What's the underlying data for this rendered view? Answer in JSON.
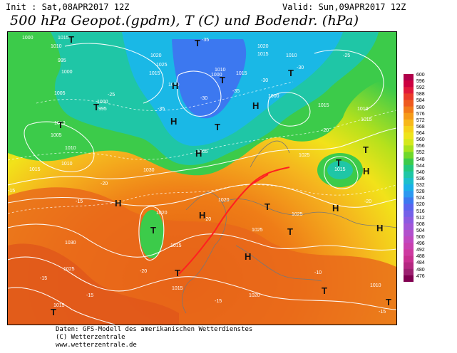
{
  "header": {
    "init": "Init : Sat,08APR2017 12Z",
    "valid": "Valid: Sun,09APR2017 12Z",
    "title": "500 hPa Geopot.(gpdm), T (C) und Bodendr. (hPa)"
  },
  "footer": {
    "line1": "Daten: GFS-Modell des amerikanischen Wetterdienstes",
    "line2": "(C) Wetterzentrale",
    "line3": "www.wetterzentrale.de"
  },
  "colors": {
    "deep_orange": "#e05a10",
    "orange": "#f08a1a",
    "amber": "#f5b31e",
    "yellow": "#f2e21a",
    "lime": "#b6e11c",
    "green": "#3ccb4a",
    "teal": "#1fc6a6",
    "cyan": "#1ab8e6",
    "blue": "#3c78f0",
    "trough_line": "#ff2020"
  },
  "scale_values": [
    "600",
    "596",
    "592",
    "588",
    "584",
    "580",
    "576",
    "572",
    "568",
    "564",
    "560",
    "556",
    "552",
    "548",
    "544",
    "540",
    "536",
    "532",
    "528",
    "524",
    "520",
    "516",
    "512",
    "508",
    "504",
    "500",
    "496",
    "492",
    "488",
    "484",
    "480",
    "476"
  ],
  "scale_colors": [
    "#b0004a",
    "#cc0040",
    "#e0183a",
    "#ea3a2a",
    "#ee5a1e",
    "#f27a18",
    "#f59a18",
    "#f7b81a",
    "#f5d21a",
    "#eee41c",
    "#d4e81c",
    "#a8e21c",
    "#6fd82a",
    "#3ccb4a",
    "#22c87c",
    "#1fc6a6",
    "#1bbfcc",
    "#1ab0e8",
    "#2c98f0",
    "#3c78f0",
    "#5a64ee",
    "#7460e8",
    "#8c5ae0",
    "#a056d8",
    "#b250cc",
    "#c048c0",
    "#c840b0",
    "#ce3aa0",
    "#c83090",
    "#b42880",
    "#9c2070",
    "#800050"
  ],
  "pressure_labels": [
    "1000",
    "1005",
    "1010",
    "1015",
    "1020",
    "1025",
    "1030",
    "995"
  ],
  "temp_labels": [
    "-35",
    "-30",
    "-25",
    "-20",
    "-15",
    "-10"
  ],
  "pressure_systems": [
    "H",
    "T"
  ]
}
